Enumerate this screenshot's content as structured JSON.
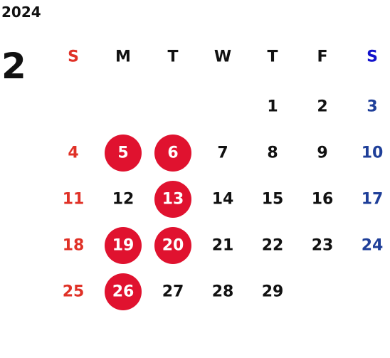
{
  "year": "2024",
  "month": "2",
  "weekdays": [
    "S",
    "M",
    "T",
    "W",
    "T",
    "F",
    "S"
  ],
  "colors": {
    "text": "#111111",
    "sunday": "#e03127",
    "saturday": "#1f3f99",
    "header_saturday": "#1212cc",
    "circle": "#e0122f",
    "circle_text": "#ffffff"
  },
  "weeks": [
    [
      null,
      null,
      null,
      null,
      {
        "day": "1",
        "circled": false
      },
      {
        "day": "2",
        "circled": false
      },
      {
        "day": "3",
        "circled": false
      }
    ],
    [
      {
        "day": "4",
        "circled": false
      },
      {
        "day": "5",
        "circled": true
      },
      {
        "day": "6",
        "circled": true
      },
      {
        "day": "7",
        "circled": false
      },
      {
        "day": "8",
        "circled": false
      },
      {
        "day": "9",
        "circled": false
      },
      {
        "day": "10",
        "circled": false
      }
    ],
    [
      {
        "day": "11",
        "circled": false
      },
      {
        "day": "12",
        "circled": false
      },
      {
        "day": "13",
        "circled": true
      },
      {
        "day": "14",
        "circled": false
      },
      {
        "day": "15",
        "circled": false
      },
      {
        "day": "16",
        "circled": false
      },
      {
        "day": "17",
        "circled": false
      }
    ],
    [
      {
        "day": "18",
        "circled": false
      },
      {
        "day": "19",
        "circled": true
      },
      {
        "day": "20",
        "circled": true
      },
      {
        "day": "21",
        "circled": false
      },
      {
        "day": "22",
        "circled": false
      },
      {
        "day": "23",
        "circled": false
      },
      {
        "day": "24",
        "circled": false
      }
    ],
    [
      {
        "day": "25",
        "circled": false
      },
      {
        "day": "26",
        "circled": true
      },
      {
        "day": "27",
        "circled": false
      },
      {
        "day": "28",
        "circled": false
      },
      {
        "day": "29",
        "circled": false
      },
      null,
      null
    ]
  ]
}
